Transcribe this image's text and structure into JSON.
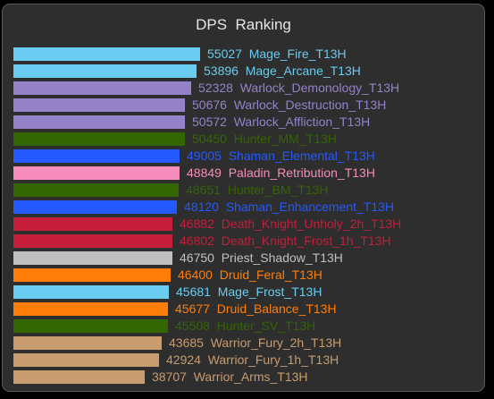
{
  "chart_data": {
    "type": "bar",
    "orientation": "horizontal",
    "title": "DPS  Ranking",
    "xlabel": "",
    "ylabel": "",
    "grid": false,
    "legend": "none",
    "xlim": [
      0,
      55027
    ],
    "bars": [
      {
        "label": "Mage_Fire_T13H",
        "value": 55027,
        "color": "#69ccf0"
      },
      {
        "label": "Mage_Arcane_T13H",
        "value": 53896,
        "color": "#69ccf0"
      },
      {
        "label": "Warlock_Demonology_T13H",
        "value": 52328,
        "color": "#9482c9"
      },
      {
        "label": "Warlock_Destruction_T13H",
        "value": 50676,
        "color": "#9482c9"
      },
      {
        "label": "Warlock_Affliction_T13H",
        "value": 50572,
        "color": "#9482c9"
      },
      {
        "label": "Hunter_MM_T13H",
        "value": 50450,
        "color": "#336600"
      },
      {
        "label": "Shaman_Elemental_T13H",
        "value": 49005,
        "color": "#2459ff"
      },
      {
        "label": "Paladin_Retribution_T13H",
        "value": 48849,
        "color": "#f58cba"
      },
      {
        "label": "Hunter_BM_T13H",
        "value": 48651,
        "color": "#336600"
      },
      {
        "label": "Shaman_Enhancement_T13H",
        "value": 48120,
        "color": "#2459ff"
      },
      {
        "label": "Death_Knight_Unholy_2h_T13H",
        "value": 46882,
        "color": "#c41e3b"
      },
      {
        "label": "Death_Knight_Frost_1h_T13H",
        "value": 46802,
        "color": "#c41e3b"
      },
      {
        "label": "Priest_Shadow_T13H",
        "value": 46750,
        "color": "#c0c0c0"
      },
      {
        "label": "Druid_Feral_T13H",
        "value": 46400,
        "color": "#ff7d0a"
      },
      {
        "label": "Mage_Frost_T13H",
        "value": 45681,
        "color": "#69ccf0"
      },
      {
        "label": "Druid_Balance_T13H",
        "value": 45677,
        "color": "#ff7d0a"
      },
      {
        "label": "Hunter_SV_T13H",
        "value": 45508,
        "color": "#336600"
      },
      {
        "label": "Warrior_Fury_2h_T13H",
        "value": 43685,
        "color": "#c79c6e"
      },
      {
        "label": "Warrior_Fury_1h_T13H",
        "value": 42924,
        "color": "#c79c6e"
      },
      {
        "label": "Warrior_Arms_T13H",
        "value": 38707,
        "color": "#c79c6e"
      }
    ]
  }
}
